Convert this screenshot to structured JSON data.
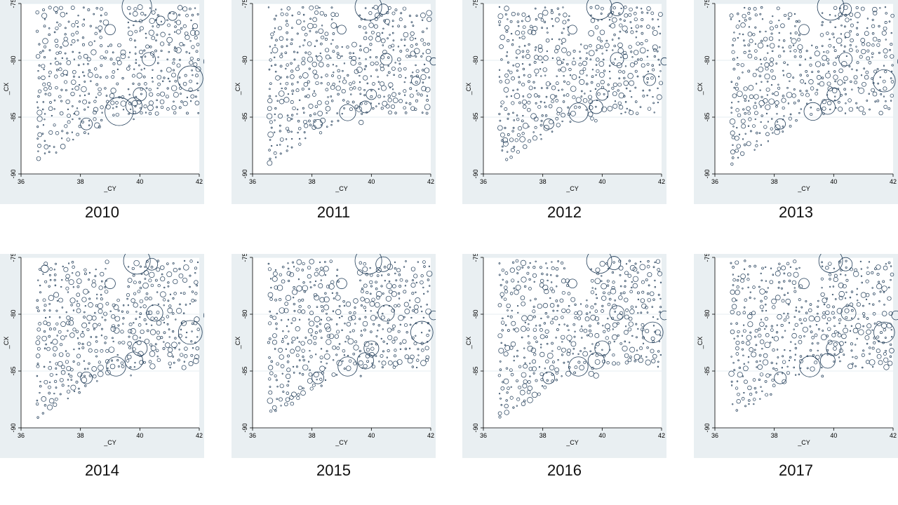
{
  "chart_data": [
    {
      "type": "scatter",
      "caption": "2010",
      "xlabel": "_CY",
      "ylabel": "_CX",
      "xlim": [
        36,
        42
      ],
      "ylim": [
        -90,
        -75
      ],
      "xticks": [
        36,
        38,
        40,
        42
      ],
      "yticks": [
        -75,
        -80,
        -85,
        -90
      ],
      "grid": true,
      "seed": 2010,
      "big_bubbles": [
        [
          39.9,
          -75.3,
          1.0
        ],
        [
          40.3,
          -79.9,
          0.45
        ],
        [
          41.7,
          -81.6,
          0.85
        ],
        [
          42.3,
          -80.1,
          0.3
        ],
        [
          39.3,
          -84.5,
          0.95
        ],
        [
          39.8,
          -84.0,
          0.55
        ],
        [
          38.2,
          -85.6,
          0.4
        ],
        [
          39.0,
          -77.3,
          0.35
        ],
        [
          40.7,
          -76.5,
          0.3
        ],
        [
          41.1,
          -76.1,
          0.3
        ],
        [
          40.0,
          -83.0,
          0.45
        ]
      ]
    },
    {
      "type": "scatter",
      "caption": "2011",
      "xlabel": "_CY",
      "ylabel": "_CX",
      "xlim": [
        36,
        42
      ],
      "ylim": [
        -90,
        -75
      ],
      "xticks": [
        36,
        38,
        40,
        42
      ],
      "yticks": [
        -75,
        -80,
        -85,
        -90
      ],
      "grid": true,
      "seed": 2011,
      "big_bubbles": [
        [
          39.9,
          -75.3,
          0.9
        ],
        [
          40.4,
          -75.5,
          0.35
        ],
        [
          40.5,
          -79.9,
          0.4
        ],
        [
          41.5,
          -81.8,
          0.3
        ],
        [
          42.1,
          -80.1,
          0.25
        ],
        [
          39.2,
          -84.6,
          0.55
        ],
        [
          39.8,
          -84.1,
          0.4
        ],
        [
          38.2,
          -85.6,
          0.3
        ],
        [
          39.0,
          -77.3,
          0.3
        ],
        [
          40.0,
          -83.0,
          0.35
        ]
      ]
    },
    {
      "type": "scatter",
      "caption": "2012",
      "xlabel": "_CY",
      "ylabel": "_CX",
      "xlim": [
        36,
        42
      ],
      "ylim": [
        -90,
        -75
      ],
      "xticks": [
        36,
        38,
        40,
        42
      ],
      "yticks": [
        -75,
        -80,
        -85,
        -90
      ],
      "grid": true,
      "seed": 2012,
      "big_bubbles": [
        [
          39.9,
          -75.3,
          0.85
        ],
        [
          40.5,
          -75.5,
          0.45
        ],
        [
          40.5,
          -79.9,
          0.45
        ],
        [
          41.6,
          -81.7,
          0.4
        ],
        [
          42.1,
          -80.1,
          0.25
        ],
        [
          39.2,
          -84.6,
          0.65
        ],
        [
          39.8,
          -84.1,
          0.45
        ],
        [
          38.2,
          -85.6,
          0.35
        ],
        [
          39.0,
          -77.3,
          0.3
        ],
        [
          40.0,
          -83.0,
          0.4
        ]
      ]
    },
    {
      "type": "scatter",
      "caption": "2013",
      "xlabel": "_CY",
      "ylabel": "_CX",
      "xlim": [
        36,
        42
      ],
      "ylim": [
        -90,
        -75
      ],
      "xticks": [
        36,
        38,
        40,
        42
      ],
      "yticks": [
        -75,
        -80,
        -85,
        -90
      ],
      "grid": true,
      "seed": 2013,
      "big_bubbles": [
        [
          39.9,
          -75.3,
          0.9
        ],
        [
          40.4,
          -75.5,
          0.4
        ],
        [
          40.4,
          -79.9,
          0.45
        ],
        [
          41.7,
          -81.8,
          0.75
        ],
        [
          42.3,
          -80.1,
          0.3
        ],
        [
          39.3,
          -84.5,
          0.6
        ],
        [
          39.8,
          -84.1,
          0.5
        ],
        [
          38.2,
          -85.6,
          0.35
        ],
        [
          39.0,
          -77.3,
          0.35
        ],
        [
          40.0,
          -83.0,
          0.45
        ]
      ]
    },
    {
      "type": "scatter",
      "caption": "2014",
      "xlabel": "_CY",
      "ylabel": "_CX",
      "xlim": [
        36,
        42
      ],
      "ylim": [
        -90,
        -75
      ],
      "xticks": [
        36,
        38,
        40,
        42
      ],
      "yticks": [
        -75,
        -80,
        -85,
        -90
      ],
      "grid": true,
      "seed": 2014,
      "big_bubbles": [
        [
          39.9,
          -75.3,
          0.9
        ],
        [
          40.4,
          -75.6,
          0.4
        ],
        [
          40.5,
          -79.9,
          0.55
        ],
        [
          41.7,
          -81.6,
          0.8
        ],
        [
          42.3,
          -80.1,
          0.3
        ],
        [
          39.2,
          -84.6,
          0.65
        ],
        [
          39.8,
          -84.1,
          0.6
        ],
        [
          38.2,
          -85.6,
          0.4
        ],
        [
          39.0,
          -77.3,
          0.35
        ],
        [
          36.8,
          -76.0,
          0.25
        ],
        [
          40.0,
          -83.0,
          0.5
        ]
      ]
    },
    {
      "type": "scatter",
      "caption": "2015",
      "xlabel": "_CY",
      "ylabel": "_CX",
      "xlim": [
        36,
        42
      ],
      "ylim": [
        -90,
        -75
      ],
      "xticks": [
        36,
        38,
        40,
        42
      ],
      "yticks": [
        -75,
        -80,
        -85,
        -90
      ],
      "grid": true,
      "seed": 2015,
      "big_bubbles": [
        [
          39.9,
          -75.3,
          0.9
        ],
        [
          40.4,
          -75.6,
          0.5
        ],
        [
          40.5,
          -79.9,
          0.55
        ],
        [
          41.7,
          -81.6,
          0.75
        ],
        [
          42.1,
          -80.1,
          0.3
        ],
        [
          39.2,
          -84.6,
          0.65
        ],
        [
          39.8,
          -84.1,
          0.55
        ],
        [
          38.2,
          -85.6,
          0.4
        ],
        [
          39.0,
          -77.3,
          0.35
        ],
        [
          40.0,
          -83.0,
          0.5
        ]
      ]
    },
    {
      "type": "scatter",
      "caption": "2016",
      "xlabel": "_CY",
      "ylabel": "_CX",
      "xlim": [
        36,
        42
      ],
      "ylim": [
        -90,
        -75
      ],
      "xticks": [
        36,
        38,
        40,
        42
      ],
      "yticks": [
        -75,
        -80,
        -85,
        -90
      ],
      "grid": true,
      "seed": 2016,
      "big_bubbles": [
        [
          39.9,
          -75.3,
          0.85
        ],
        [
          40.4,
          -75.5,
          0.45
        ],
        [
          40.5,
          -79.9,
          0.5
        ],
        [
          41.7,
          -81.6,
          0.7
        ],
        [
          42.1,
          -80.1,
          0.3
        ],
        [
          39.2,
          -84.6,
          0.65
        ],
        [
          39.8,
          -84.1,
          0.55
        ],
        [
          38.2,
          -85.6,
          0.4
        ],
        [
          39.0,
          -77.3,
          0.3
        ],
        [
          40.0,
          -83.0,
          0.5
        ]
      ]
    },
    {
      "type": "scatter",
      "caption": "2017",
      "xlabel": "_CY",
      "ylabel": "_CX",
      "xlim": [
        36,
        42
      ],
      "ylim": [
        -90,
        -75
      ],
      "xticks": [
        36,
        38,
        40,
        42
      ],
      "yticks": [
        -75,
        -80,
        -85,
        -90
      ],
      "grid": true,
      "seed": 2017,
      "big_bubbles": [
        [
          39.9,
          -75.3,
          0.8
        ],
        [
          40.4,
          -75.6,
          0.45
        ],
        [
          40.5,
          -79.9,
          0.5
        ],
        [
          41.7,
          -81.6,
          0.7
        ],
        [
          42.1,
          -80.1,
          0.3
        ],
        [
          39.2,
          -84.6,
          0.7
        ],
        [
          39.8,
          -84.1,
          0.5
        ],
        [
          38.2,
          -85.6,
          0.4
        ],
        [
          39.0,
          -77.3,
          0.35
        ],
        [
          40.0,
          -83.0,
          0.5
        ]
      ]
    }
  ],
  "style": {
    "marker_color": "#1f3b57",
    "gridline_color": "#e4ecf1",
    "panel_color": "#e9eff2",
    "plot_color": "#ffffff"
  }
}
